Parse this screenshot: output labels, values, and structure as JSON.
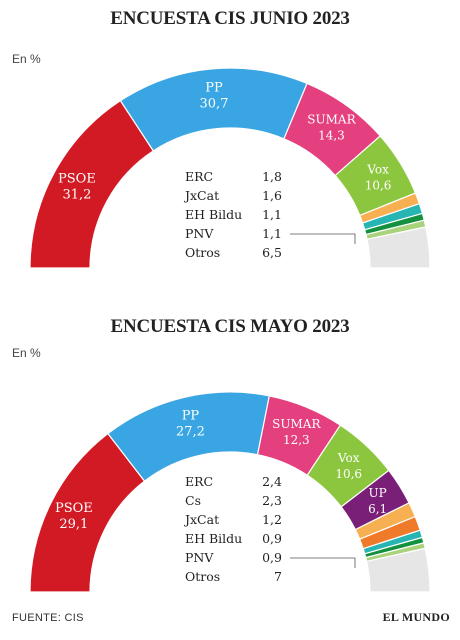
{
  "chart_data": [
    {
      "type": "semicircle",
      "title": "ENCUESTA CIS JUNIO 2023",
      "unit": "En %",
      "series": [
        {
          "name": "PSOE",
          "value": 31.2,
          "display": "31,2",
          "color": "#d21a24",
          "label_show": true
        },
        {
          "name": "PP",
          "value": 30.7,
          "display": "30,7",
          "color": "#39a5e3",
          "label_show": true
        },
        {
          "name": "SUMAR",
          "value": 14.3,
          "display": "14,3",
          "color": "#e43f7e",
          "label_show": true
        },
        {
          "name": "Vox",
          "value": 10.6,
          "display": "10,6",
          "color": "#8cc63f",
          "label_show": true
        },
        {
          "name": "ERC",
          "value": 1.8,
          "display": "1,8",
          "color": "#f6b052",
          "label_show": false
        },
        {
          "name": "JxCat",
          "value": 1.6,
          "display": "1,6",
          "color": "#27b5b4",
          "label_show": false
        },
        {
          "name": "EH Bildu",
          "value": 1.1,
          "display": "1,1",
          "color": "#14913f",
          "label_show": false
        },
        {
          "name": "PNV",
          "value": 1.1,
          "display": "1,1",
          "color": "#a8d37c",
          "label_show": false
        },
        {
          "name": "Otros",
          "value": 6.5,
          "display": "6,5",
          "color": "#e6e6e6",
          "label_show": false
        }
      ],
      "table": [
        {
          "name": "ERC",
          "display": "1,8"
        },
        {
          "name": "JxCat",
          "display": "1,6"
        },
        {
          "name": "EH Bildu",
          "display": "1,1"
        },
        {
          "name": "PNV",
          "display": "1,1"
        },
        {
          "name": "Otros",
          "display": "6,5"
        }
      ]
    },
    {
      "type": "semicircle",
      "title": "ENCUESTA CIS MAYO 2023",
      "unit": "En %",
      "series": [
        {
          "name": "PSOE",
          "value": 29.1,
          "display": "29,1",
          "color": "#d21a24",
          "label_show": true
        },
        {
          "name": "PP",
          "value": 27.2,
          "display": "27,2",
          "color": "#39a5e3",
          "label_show": true
        },
        {
          "name": "SUMAR",
          "value": 12.3,
          "display": "12,3",
          "color": "#e43f7e",
          "label_show": true
        },
        {
          "name": "Vox",
          "value": 10.6,
          "display": "10,6",
          "color": "#8cc63f",
          "label_show": true
        },
        {
          "name": "UP",
          "value": 6.1,
          "display": "6,1",
          "color": "#7a1f78",
          "label_show": true
        },
        {
          "name": "ERC",
          "value": 2.4,
          "display": "2,4",
          "color": "#f6b052",
          "label_show": false
        },
        {
          "name": "Cs",
          "value": 2.3,
          "display": "2,3",
          "color": "#ee7a2a",
          "label_show": false
        },
        {
          "name": "JxCat",
          "value": 1.2,
          "display": "1,2",
          "color": "#27b5b4",
          "label_show": false
        },
        {
          "name": "EH Bildu",
          "value": 0.9,
          "display": "0,9",
          "color": "#14913f",
          "label_show": false
        },
        {
          "name": "PNV",
          "value": 0.9,
          "display": "0,9",
          "color": "#a8d37c",
          "label_show": false
        },
        {
          "name": "Otros",
          "value": 7,
          "display": "7",
          "color": "#e6e6e6",
          "label_show": false
        }
      ],
      "table": [
        {
          "name": "ERC",
          "display": "2,4"
        },
        {
          "name": "Cs",
          "display": "2,3"
        },
        {
          "name": "JxCat",
          "display": "1,2"
        },
        {
          "name": "EH Bildu",
          "display": "0,9"
        },
        {
          "name": "PNV",
          "display": "0,9"
        },
        {
          "name": "Otros",
          "display": "7"
        }
      ]
    }
  ],
  "footer": {
    "source": "FUENTE: CIS",
    "brand": "EL MUNDO"
  }
}
